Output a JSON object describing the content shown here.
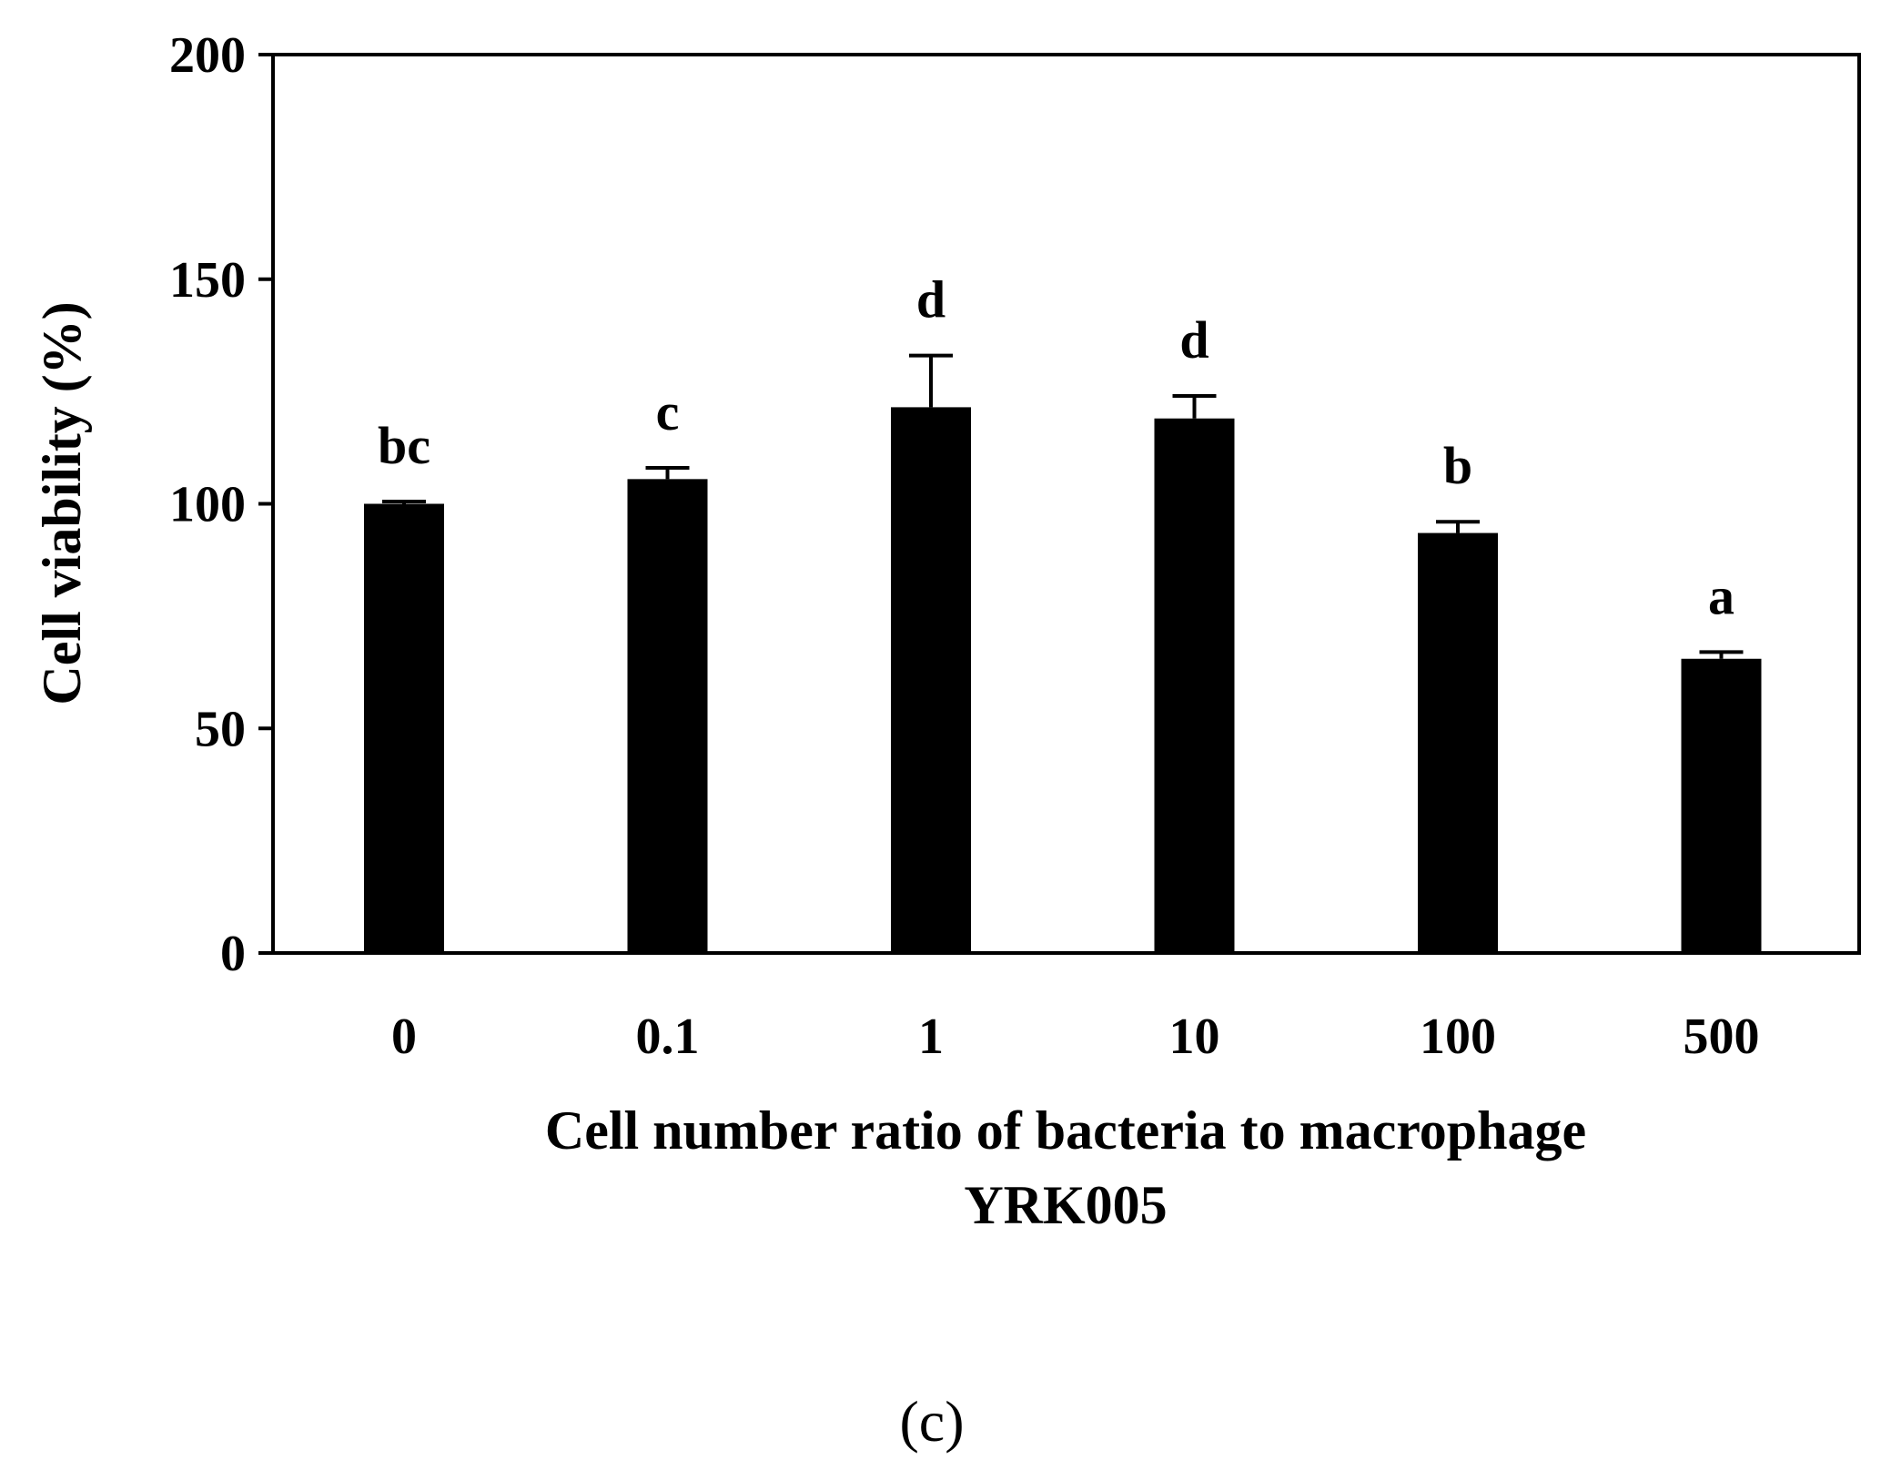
{
  "chart_data": {
    "type": "bar",
    "title": "",
    "xlabel": "Cell number ratio of bacteria to macrophage",
    "xlabel_line2": "YRK005",
    "ylabel": "Cell viability (%)",
    "ylim": [
      0,
      200
    ],
    "yticks": [
      0,
      50,
      100,
      150,
      200
    ],
    "grid": false,
    "legend": "none",
    "categories": [
      "0",
      "0.1",
      "1",
      "10",
      "100",
      "500"
    ],
    "series": [
      {
        "values": [
          100,
          105.5,
          121.5,
          119,
          93.5,
          65.5
        ],
        "errors": [
          0.5,
          2.5,
          11.5,
          5,
          2.5,
          1.5
        ],
        "significance": [
          "bc",
          "c",
          "d",
          "d",
          "b",
          "a"
        ]
      }
    ],
    "colors": {
      "bar": "#000000",
      "axis": "#000000",
      "background": "#ffffff"
    }
  },
  "panel_label": "(c)"
}
